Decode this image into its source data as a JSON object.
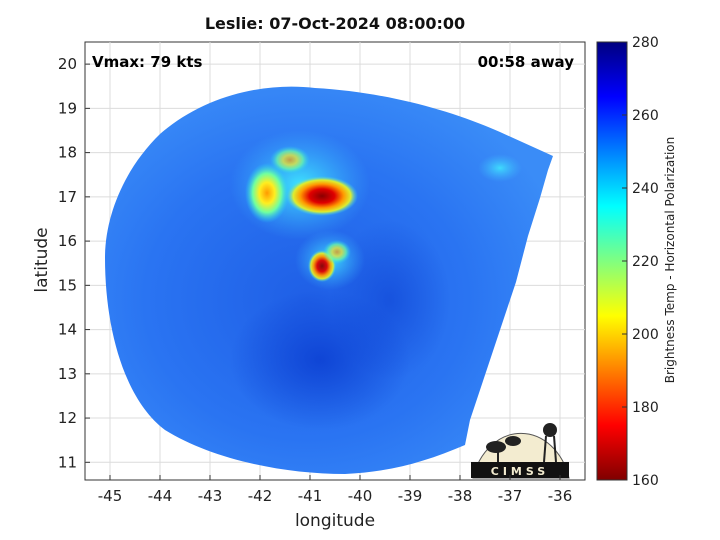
{
  "chart_data": {
    "type": "heatmap",
    "title": "Leslie: 07-Oct-2024 08:00:00",
    "xlabel": "longitude",
    "ylabel": "latitude",
    "xlim": [
      -45.5,
      -35.5
    ],
    "ylim": [
      10.6,
      20.5
    ],
    "xticks": [
      -45,
      -44,
      -43,
      -42,
      -41,
      -40,
      -39,
      -38,
      -37,
      -36
    ],
    "yticks": [
      11,
      12,
      13,
      14,
      15,
      16,
      17,
      18,
      19,
      20
    ],
    "grid": true,
    "annotations": {
      "vmax": "Vmax: 79 kts",
      "time_away": "00:58 away"
    },
    "colorbar": {
      "label": "Brightness Temp - Horizontal Polarization",
      "range": [
        160,
        280
      ],
      "ticks": [
        160,
        180,
        200,
        220,
        240,
        260,
        280
      ],
      "colormap": "jet"
    },
    "features": [
      {
        "name": "inner core cold band",
        "lon": -40.6,
        "lat": 17.05,
        "min_temp": 168
      },
      {
        "name": "western convective band",
        "lon": -41.9,
        "lat": 17.0,
        "min_temp": 190
      },
      {
        "name": "southern spiral band",
        "lon": -40.7,
        "lat": 15.45,
        "min_temp": 178
      }
    ],
    "background_temp": 255,
    "logo": "CIMSS"
  }
}
